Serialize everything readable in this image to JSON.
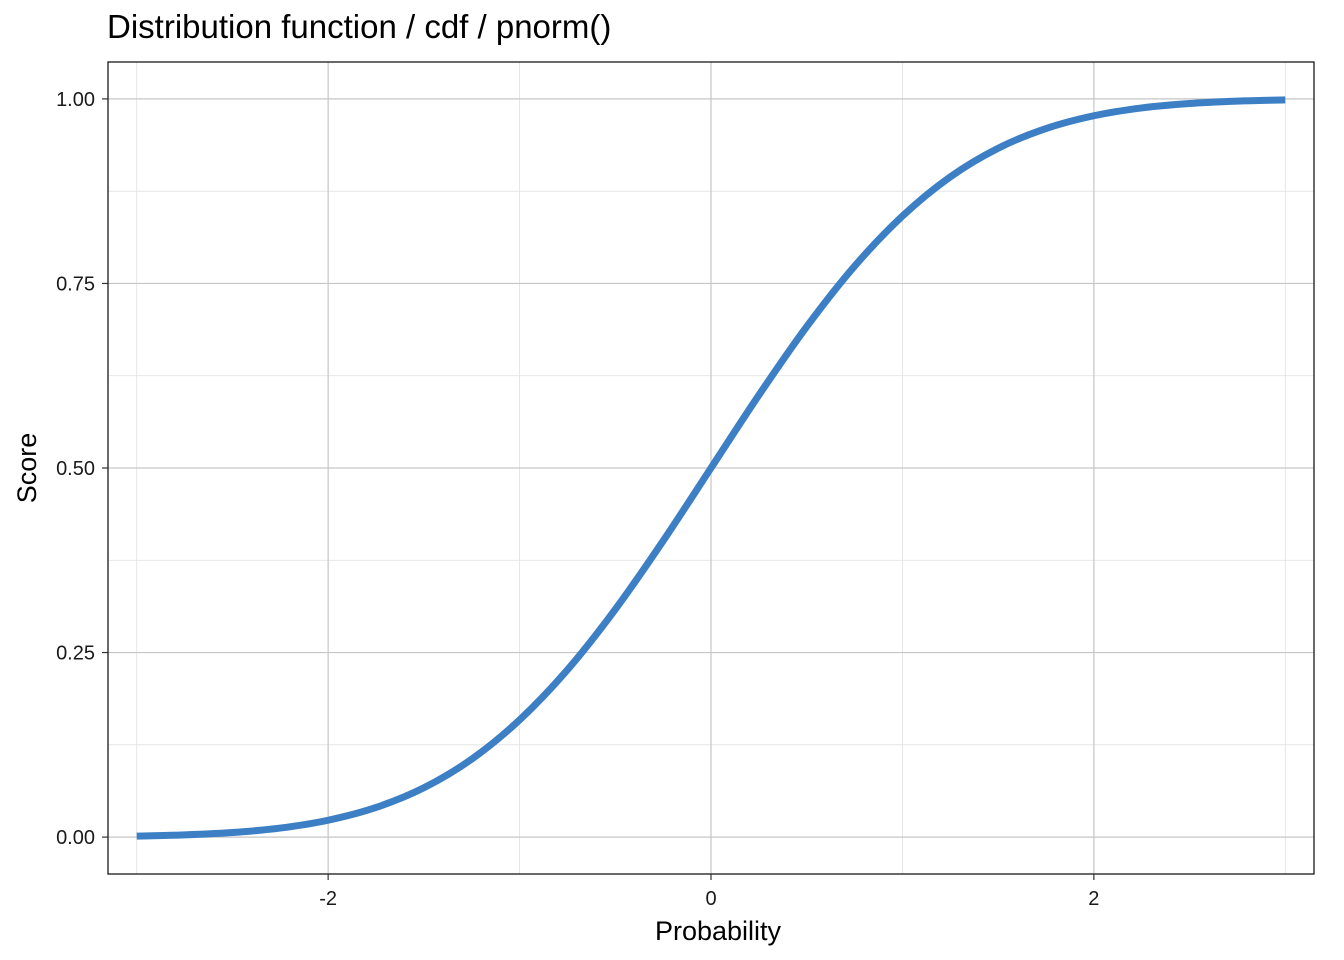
{
  "chart_data": {
    "type": "line",
    "title": "Distribution function / cdf / pnorm()",
    "xlabel": "Probability",
    "ylabel": "Score",
    "xlim": [
      -3.15,
      3.15
    ],
    "ylim": [
      -0.05,
      1.05
    ],
    "x_ticks": [
      {
        "value": -2,
        "label": "-2"
      },
      {
        "value": 0,
        "label": "0"
      },
      {
        "value": 2,
        "label": "2"
      }
    ],
    "x_minor_ticks": [
      -3,
      -1,
      1,
      3
    ],
    "y_ticks": [
      {
        "value": 0.0,
        "label": "0.00"
      },
      {
        "value": 0.25,
        "label": "0.25"
      },
      {
        "value": 0.5,
        "label": "0.50"
      },
      {
        "value": 0.75,
        "label": "0.75"
      },
      {
        "value": 1.0,
        "label": "1.00"
      }
    ],
    "y_minor_ticks": [
      0.125,
      0.375,
      0.625,
      0.875
    ],
    "grid": true,
    "line_color": "#3D7FC4",
    "series": [
      {
        "x": [
          -3.0,
          -2.75,
          -2.5,
          -2.25,
          -2.0,
          -1.75,
          -1.5,
          -1.25,
          -1.0,
          -0.75,
          -0.5,
          -0.25,
          0.0,
          0.25,
          0.5,
          0.75,
          1.0,
          1.25,
          1.5,
          1.75,
          2.0,
          2.25,
          2.5,
          2.75,
          3.0
        ],
        "values": [
          0.0013,
          0.003,
          0.0062,
          0.0122,
          0.0228,
          0.0401,
          0.0668,
          0.1056,
          0.1587,
          0.2266,
          0.3085,
          0.4013,
          0.5,
          0.5987,
          0.6915,
          0.7734,
          0.8413,
          0.8944,
          0.9332,
          0.9599,
          0.9772,
          0.9878,
          0.9938,
          0.997,
          0.9987
        ]
      }
    ]
  }
}
